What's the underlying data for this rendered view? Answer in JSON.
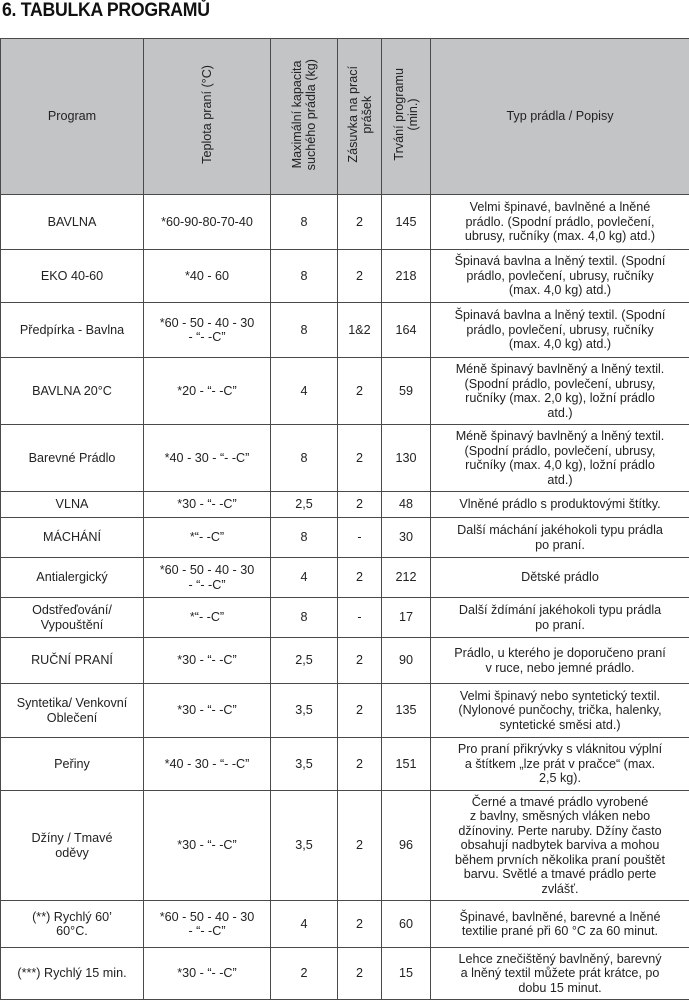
{
  "title": "6. TABULKA PROGRAMŮ",
  "columns": {
    "program": "Program",
    "temperature": "Teplota praní (°C)",
    "capacity": "Maximální kapacita\nsuchého prádla (kg)",
    "detergent": "Zásuvka na prací\nprášek",
    "duration": "Trvání programu\n(min.)",
    "description": "Typ prádla / Popisy"
  },
  "rows": [
    {
      "program": "BAVLNA",
      "temperature": "*60-90-80-70-40",
      "capacity": "8",
      "detergent": "2",
      "duration": "145",
      "description": "Velmi špinavé, bavlněné a lněné\nprádlo. (Spodní prádlo, povlečení,\nubrusy, ručníky (max. 4,0 kg) atd.)"
    },
    {
      "program": "EKO 40-60",
      "temperature": "*40 - 60",
      "capacity": "8",
      "detergent": "2",
      "duration": "218",
      "description": "Špinavá bavlna a lněný textil. (Spodní\nprádlo, povlečení, ubrusy, ručníky\n(max. 4,0 kg) atd.)"
    },
    {
      "program": "Předpírka - Bavlna",
      "temperature": "*60 - 50 - 40 - 30\n- “- -C”",
      "capacity": "8",
      "detergent": "1&2",
      "duration": "164",
      "description": "Špinavá bavlna a lněný textil. (Spodní\nprádlo, povlečení, ubrusy, ručníky\n(max. 4,0 kg) atd.)"
    },
    {
      "program": "BAVLNA 20°C",
      "temperature": "*20 - “- -C”",
      "capacity": "4",
      "detergent": "2",
      "duration": "59",
      "description": "Méně špinavý bavlněný a lněný textil.\n(Spodní prádlo, povlečení, ubrusy,\nručníky (max. 2,0 kg), ložní prádlo\natd.)"
    },
    {
      "program": "Barevné Prádlo",
      "temperature": "*40 - 30 - “- -C”",
      "capacity": "8",
      "detergent": "2",
      "duration": "130",
      "description": "Méně špinavý bavlněný a lněný textil.\n(Spodní prádlo, povlečení, ubrusy,\nručníky (max. 4,0 kg), ložní prádlo\natd.)"
    },
    {
      "program": "VLNA",
      "temperature": "*30 - “- -C”",
      "capacity": "2,5",
      "detergent": "2",
      "duration": "48",
      "description": "Vlněné prádlo s produktovými štítky."
    },
    {
      "program": "MÁCHÁNÍ",
      "temperature": "*“- -C”",
      "capacity": "8",
      "detergent": "-",
      "duration": "30",
      "description": "Další máchání jakéhokoli typu prádla\npo praní."
    },
    {
      "program": "Antialergický",
      "temperature": "*60 - 50 - 40 - 30\n- “- -C”",
      "capacity": "4",
      "detergent": "2",
      "duration": "212",
      "description": "Dětské prádlo"
    },
    {
      "program": "Odstřeďování/\nVypouštění",
      "temperature": "*“- -C”",
      "capacity": "8",
      "detergent": "-",
      "duration": "17",
      "description": "Další ždímání jakéhokoli typu prádla\npo praní."
    },
    {
      "program": "RUČNÍ PRANÍ",
      "temperature": "*30 - “- -C”",
      "capacity": "2,5",
      "detergent": "2",
      "duration": "90",
      "description": "Prádlo, u kterého je doporučeno praní\nv ruce, nebo jemné prádlo."
    },
    {
      "program": "Syntetika/ Venkovní\nOblečení",
      "temperature": "*30 - “- -C”",
      "capacity": "3,5",
      "detergent": "2",
      "duration": "135",
      "description": "Velmi špinavý nebo syntetický textil.\n(Nylonové punčochy, trička, halenky,\nsyntetické směsi atd.)"
    },
    {
      "program": "Peřiny",
      "temperature": "*40 - 30 - “- -C”",
      "capacity": "3,5",
      "detergent": "2",
      "duration": "151",
      "description": "Pro praní přikrývky s vláknitou výplní\na štítkem „lze prát v pračce“ (max.\n2,5 kg)."
    },
    {
      "program": "Džíny / Tmavé\noděvy",
      "temperature": "*30 - “- -C”",
      "capacity": "3,5",
      "detergent": "2",
      "duration": "96",
      "description": "Černé a tmavé prádlo vyrobené\nz bavlny, směsných vláken nebo\ndžínoviny. Perte naruby. Džíny často\nobsahují nadbytek barviva a mohou\nběhem prvních několika praní pouštět\nbarvu. Světlé a tmavé prádlo perte\nzvlášť."
    },
    {
      "program": "(**) Rychlý 60’\n60°C.",
      "temperature": "*60 - 50 - 40 - 30\n- “- -C”",
      "capacity": "4",
      "detergent": "2",
      "duration": "60",
      "description": "Špinavé, bavlněné, barevné a lněné\ntextilie prané při 60 °C za 60 minut."
    },
    {
      "program": "(***) Rychlý 15 min.",
      "temperature": "*30 - “- -C”",
      "capacity": "2",
      "detergent": "2",
      "duration": "15",
      "description": "Lehce znečištěný bavlněný, barevný\na lněný textil můžete prát krátce, po\ndobu 15 minut."
    }
  ]
}
